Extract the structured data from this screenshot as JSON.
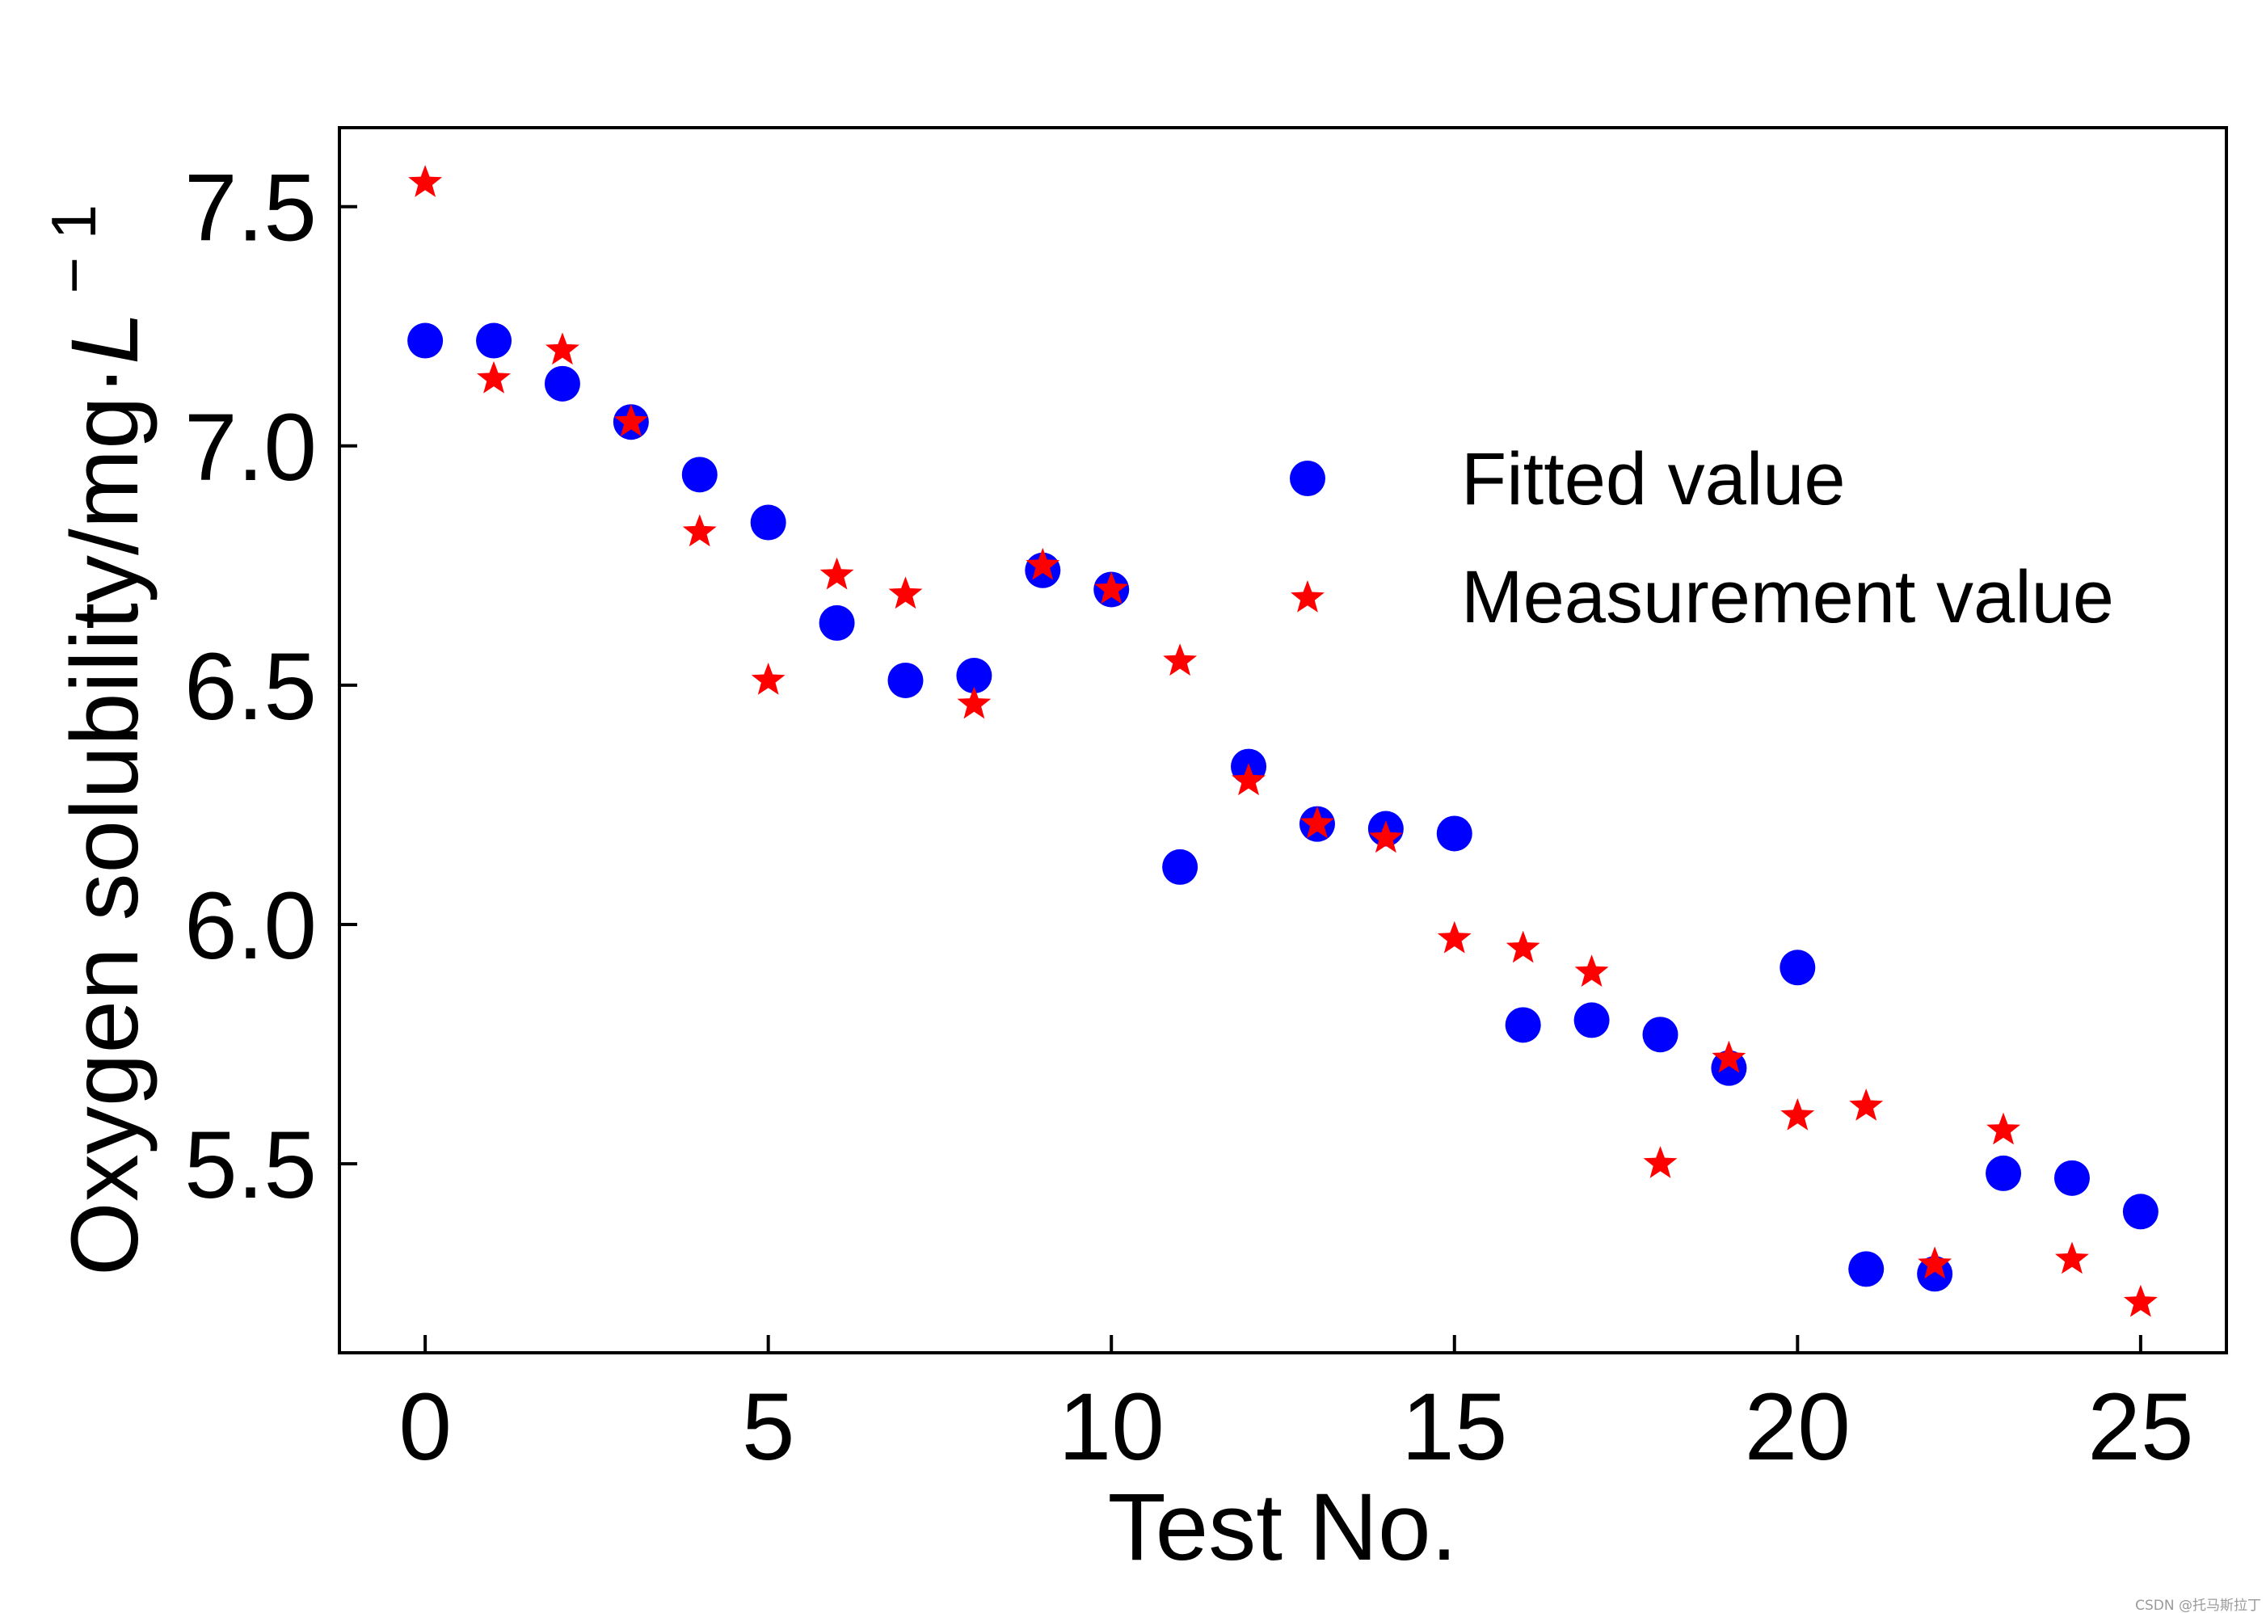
{
  "chart_data": {
    "type": "scatter",
    "title": "",
    "xlabel": "Test No.",
    "ylabel": {
      "prefix": "Oxygen solubility/mg·",
      "unit_var": "L",
      "suffix": " − 1"
    },
    "xlim": [
      -1.25,
      26.25
    ],
    "ylim": [
      5.105,
      7.665
    ],
    "xticks": [
      0,
      5,
      10,
      15,
      20,
      25
    ],
    "xtick_labels": [
      "0",
      "5",
      "10",
      "15",
      "20",
      "25"
    ],
    "yticks": [
      5.5,
      6.0,
      6.5,
      7.0,
      7.5
    ],
    "ytick_labels": [
      "5.5",
      "6.0",
      "6.5",
      "7.0",
      "7.5"
    ],
    "grid": false,
    "legend_position": "upper-right",
    "series": [
      {
        "name": "Fitted value",
        "marker": "circle",
        "color": "#0000ff",
        "x": [
          0,
          1,
          2,
          3,
          4,
          5,
          6,
          7,
          8,
          9,
          10,
          11,
          12,
          13,
          14,
          15,
          16,
          17,
          18,
          19,
          20,
          21,
          22,
          23,
          24,
          25
        ],
        "y": [
          7.22,
          7.22,
          7.13,
          7.05,
          6.94,
          6.84,
          6.63,
          6.51,
          6.52,
          6.74,
          6.7,
          6.12,
          6.33,
          6.21,
          6.2,
          6.19,
          5.79,
          5.8,
          5.77,
          5.7,
          5.91,
          5.28,
          5.27,
          5.48,
          5.47,
          5.4
        ]
      },
      {
        "name": "Measurement value",
        "marker": "star",
        "color": "#ff0000",
        "x": [
          0,
          1,
          2,
          3,
          4,
          5,
          6,
          7,
          8,
          9,
          10,
          11,
          12,
          13,
          14,
          15,
          16,
          17,
          18,
          19,
          20,
          21,
          22,
          23,
          24,
          25
        ],
        "y": [
          7.55,
          7.14,
          7.2,
          7.05,
          6.82,
          6.51,
          6.73,
          6.69,
          6.46,
          6.75,
          6.7,
          6.55,
          6.3,
          6.21,
          6.18,
          5.97,
          5.95,
          5.9,
          5.5,
          5.72,
          5.6,
          5.62,
          5.29,
          5.57,
          5.3,
          5.21
        ]
      }
    ]
  },
  "watermark": "CSDN @托马斯拉丁"
}
